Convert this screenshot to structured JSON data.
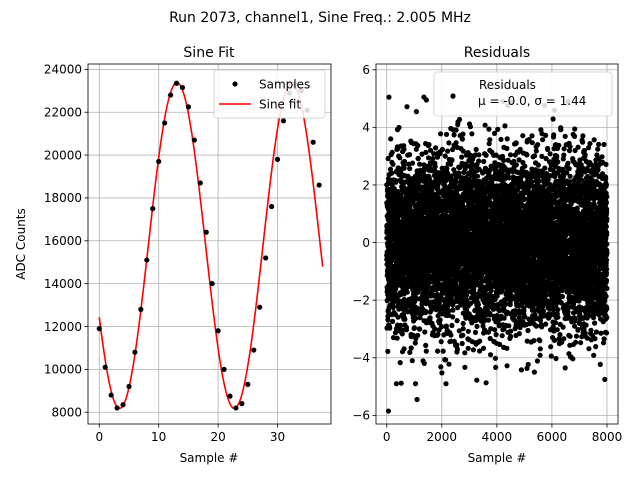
{
  "suptitle": "Run 2073, channel1, Sine Freq.: 2.005 MHz",
  "colors": {
    "fit": "#ff0000",
    "points": "#000000",
    "grid": "#b0b0b0",
    "legend_border": "#cccccc"
  },
  "chart_data": [
    {
      "type": "scatter",
      "title": "Sine Fit",
      "xlabel": "Sample #",
      "ylabel": "ADC Counts",
      "xlim": [
        -1.9,
        39.0
      ],
      "ylim": [
        7450,
        24250
      ],
      "grid": true,
      "legend_position": "top-right",
      "xticks": [
        0,
        10,
        20,
        30
      ],
      "yticks": [
        8000,
        10000,
        12000,
        14000,
        16000,
        18000,
        20000,
        22000,
        24000
      ],
      "xtick_labels": [
        "0",
        "10",
        "20",
        "30"
      ],
      "ytick_labels": [
        "8000",
        "10000",
        "12000",
        "14000",
        "16000",
        "18000",
        "20000",
        "22000",
        "24000"
      ],
      "fit_params": {
        "offset": 15780,
        "amplitude": 7600,
        "period": 19.3,
        "phase_sample": 8.25
      },
      "series": [
        {
          "name": "Samples",
          "kind": "points",
          "x": [
            0,
            1,
            2,
            3,
            4,
            5,
            6,
            7,
            8,
            9,
            10,
            11,
            12,
            13,
            14,
            15,
            16,
            17,
            18,
            19,
            20,
            21,
            22,
            23,
            24,
            25,
            26,
            27,
            28,
            29,
            30,
            31,
            32,
            33,
            34,
            35,
            36,
            37
          ],
          "y": [
            11900,
            10100,
            8800,
            8200,
            8350,
            9200,
            10800,
            12800,
            15100,
            17500,
            19700,
            21500,
            22800,
            23350,
            23150,
            22250,
            20700,
            18700,
            16400,
            14000,
            11800,
            10000,
            8750,
            8200,
            8400,
            9300,
            10900,
            12900,
            15200,
            17600,
            19800,
            21600,
            22900,
            23300,
            23000,
            22100,
            20600,
            18600
          ]
        },
        {
          "name": "Sine fit",
          "kind": "line",
          "x_range": [
            0,
            37.6
          ]
        }
      ]
    },
    {
      "type": "scatter",
      "title": "Residuals",
      "xlabel": "Sample #",
      "ylabel": "",
      "xlim": [
        -390,
        8400
      ],
      "ylim": [
        -6.3,
        6.2
      ],
      "grid": true,
      "legend_position": "top-right",
      "xticks": [
        0,
        2000,
        4000,
        6000,
        8000
      ],
      "yticks": [
        -6,
        -4,
        -2,
        0,
        2,
        4,
        6
      ],
      "xtick_labels": [
        "0",
        "2000",
        "4000",
        "6000",
        "8000"
      ],
      "ytick_labels": [
        "−6",
        "−4",
        "−2",
        "0",
        "2",
        "4",
        "6"
      ],
      "legend_label": "Residuals",
      "legend_stats": "μ = -0.0, σ = 1.44",
      "n_points": 8000,
      "mean": 0.0,
      "std": 1.44,
      "outliers": [
        [
          60,
          -5.85
        ],
        [
          80,
          5.05
        ],
        [
          1350,
          5.05
        ],
        [
          1440,
          4.95
        ],
        [
          2400,
          5.05
        ],
        [
          7920,
          -4.75
        ],
        [
          2580,
          4.1
        ],
        [
          1100,
          -5.45
        ]
      ]
    }
  ]
}
